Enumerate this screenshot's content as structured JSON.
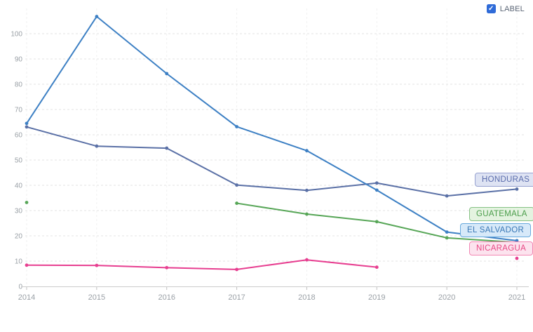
{
  "controls": {
    "label_toggle": {
      "text": "LABEL",
      "checked": true,
      "checkbox_color": "#2f6bd8"
    }
  },
  "axis_style": {
    "grid_color": "#e3e3e3",
    "vertical_grid_color": "#f1f1f1",
    "axis_line_color": "#cccccc",
    "tick_color": "#c0c0c0",
    "label_color": "#9aa0a6"
  },
  "chart_data": {
    "type": "line",
    "x": [
      "2014",
      "2015",
      "2016",
      "2017",
      "2018",
      "2019",
      "2020",
      "2021"
    ],
    "ylim": [
      0,
      110
    ],
    "y_ticks": [
      0,
      10,
      20,
      30,
      40,
      50,
      60,
      70,
      80,
      90,
      100
    ],
    "grid": {
      "horizontal": "dashed",
      "vertical": "faint-dashed"
    },
    "legend_position": "inline-end-labels",
    "title": "",
    "xlabel": "",
    "ylabel": "",
    "series": [
      {
        "name": "EL SALVADOR",
        "color": "#3d80c4",
        "pill": {
          "bg": "#d7e9f9",
          "border": "#68a9dd",
          "text": "#3877b5"
        },
        "values": [
          64.5,
          106.8,
          84.2,
          63.2,
          53.7,
          38.1,
          21.5,
          18.1
        ]
      },
      {
        "name": "HONDURAS",
        "color": "#5a70a6",
        "pill": {
          "bg": "#dee3f3",
          "border": "#97a2d0",
          "text": "#5a6cac"
        },
        "values": [
          63.1,
          55.5,
          54.7,
          40.1,
          38.0,
          40.9,
          35.8,
          38.5
        ]
      },
      {
        "name": "GUATEMALA",
        "color": "#57a657",
        "pill": {
          "bg": "#e4f3e0",
          "border": "#86c285",
          "text": "#4a9d4a"
        },
        "values": [
          33.2,
          null,
          null,
          32.9,
          28.6,
          25.6,
          19.2,
          17.4
        ]
      },
      {
        "name": "NICARAGUA",
        "color": "#e73e90",
        "pill": {
          "bg": "#fce3ee",
          "border": "#f287b4",
          "text": "#e84784"
        },
        "values": [
          8.4,
          8.3,
          7.4,
          6.7,
          10.5,
          7.6,
          null,
          11.1
        ]
      }
    ]
  }
}
